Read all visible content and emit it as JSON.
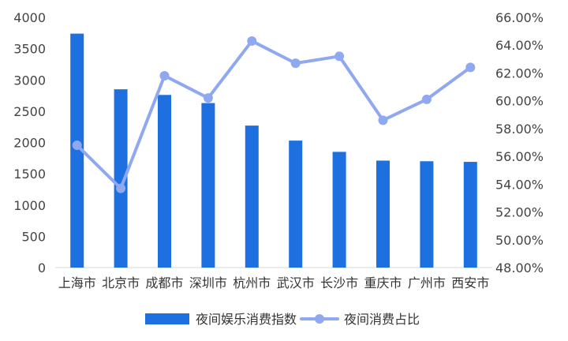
{
  "chart_data": {
    "type": "bar",
    "categories": [
      "上海市",
      "北京市",
      "成都市",
      "深圳市",
      "杭州市",
      "武汉市",
      "长沙市",
      "重庆市",
      "广州市",
      "西安市"
    ],
    "series": [
      {
        "name": "夜间娱乐消费指数",
        "type": "bar",
        "axis": "left",
        "color": "#1E6FE0",
        "values": [
          3740,
          2850,
          2760,
          2630,
          2270,
          2030,
          1850,
          1710,
          1700,
          1690
        ]
      },
      {
        "name": "夜间消费占比",
        "type": "line",
        "axis": "right",
        "color": "#8FA8F0",
        "values": [
          56.8,
          53.7,
          61.8,
          60.2,
          64.3,
          62.7,
          63.2,
          58.6,
          60.1,
          62.4
        ]
      }
    ],
    "y_left": {
      "min": 0,
      "max": 4000,
      "ticks": [
        "0",
        "500",
        "1000",
        "1500",
        "2000",
        "2500",
        "3000",
        "3500",
        "4000"
      ]
    },
    "y_right": {
      "min": 48,
      "max": 66,
      "ticks": [
        "48.00%",
        "50.00%",
        "52.00%",
        "54.00%",
        "56.00%",
        "58.00%",
        "60.00%",
        "62.00%",
        "64.00%",
        "66.00%"
      ]
    },
    "grid": false,
    "legend": {
      "position": "bottom"
    }
  }
}
